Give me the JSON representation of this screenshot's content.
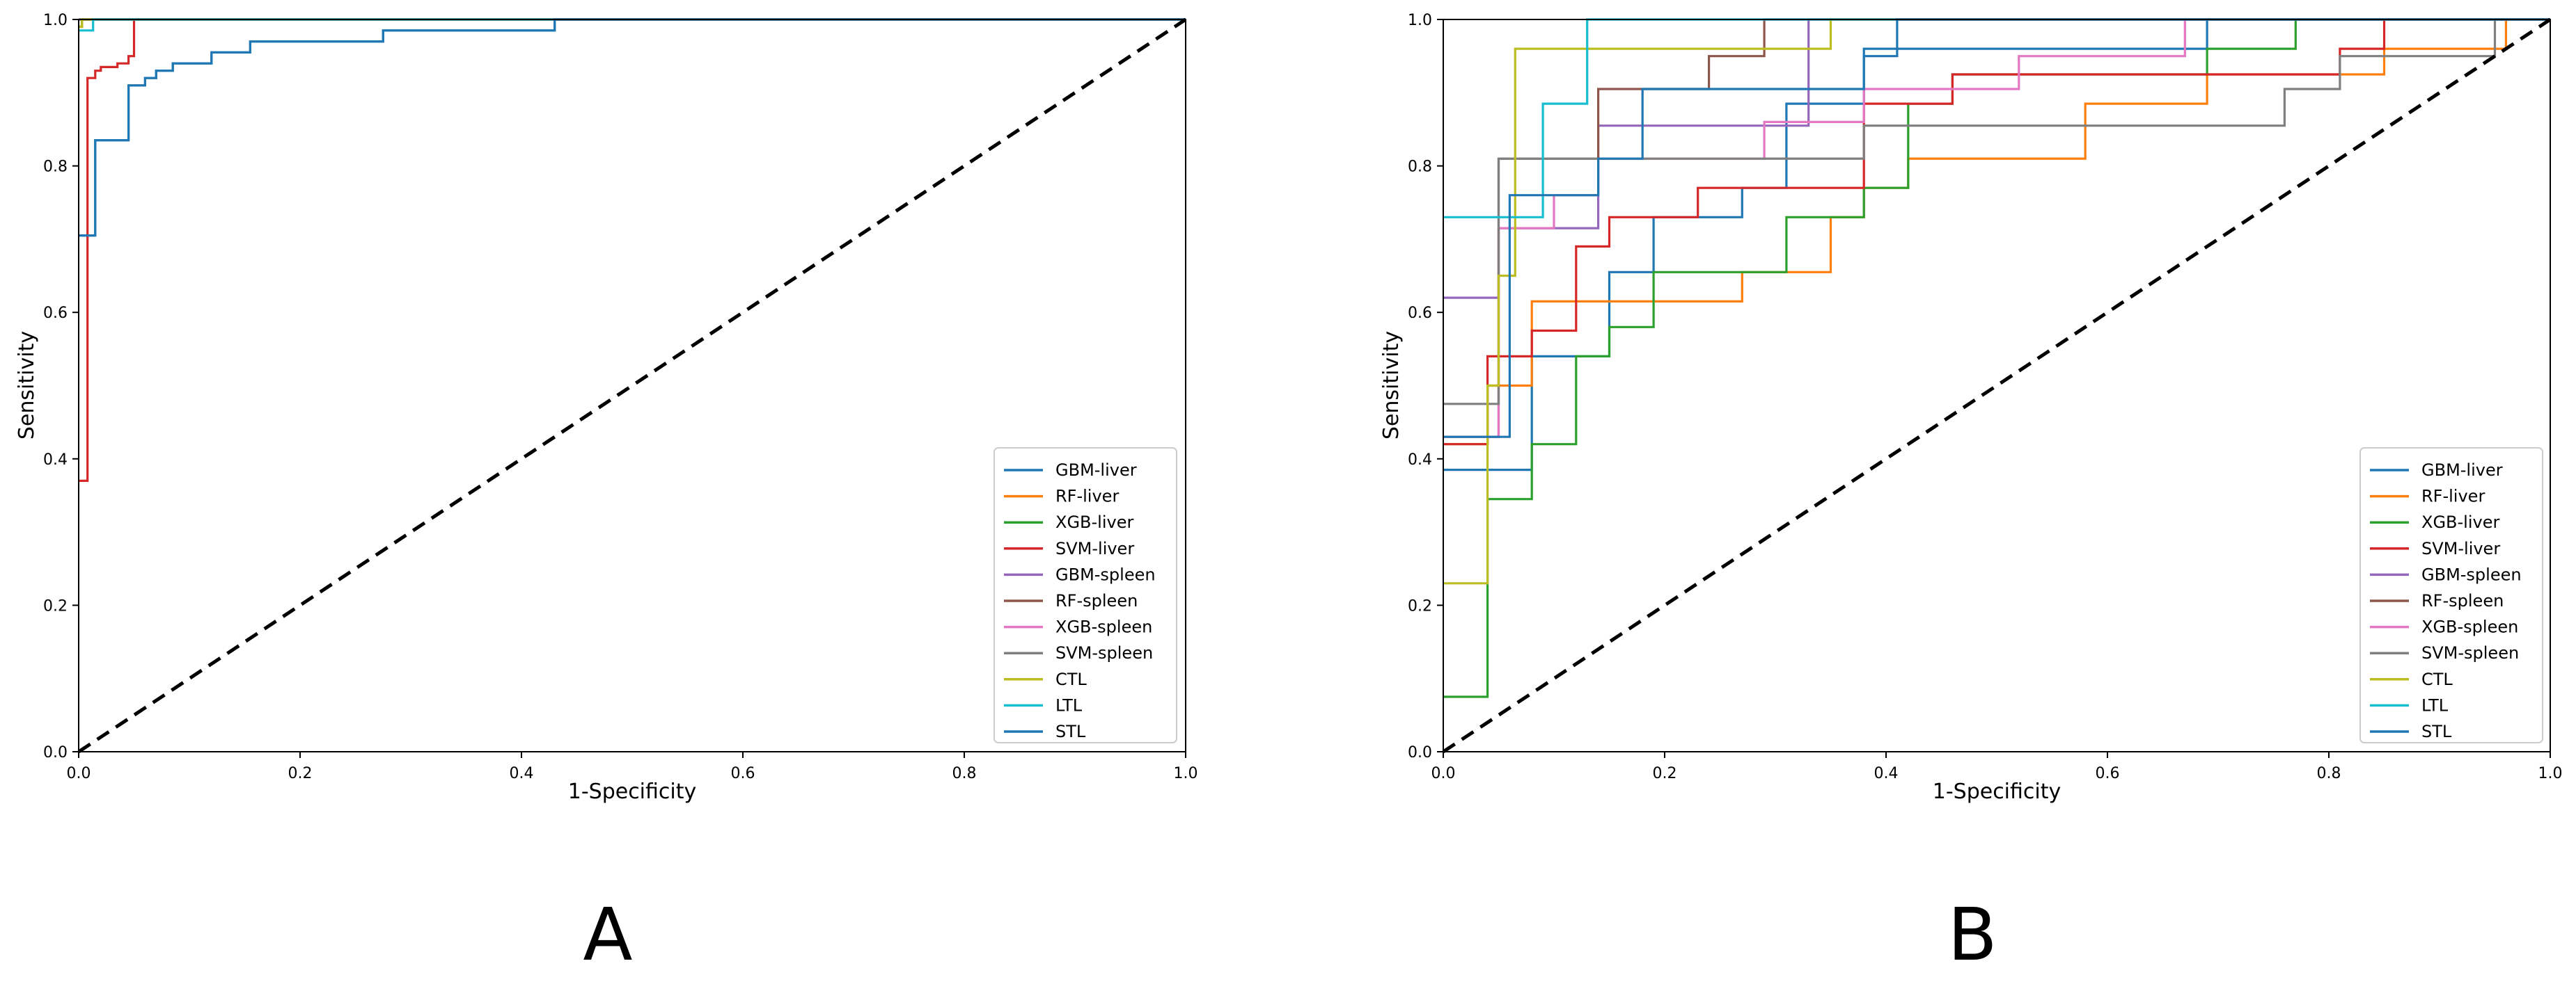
{
  "panels": [
    {
      "letter": "A",
      "xlabel": "1-Specificity",
      "ylabel": "Sensitivity",
      "xlim": [
        0,
        1
      ],
      "ylim": [
        0,
        1
      ],
      "xticks": [
        "0.0",
        "0.2",
        "0.4",
        "0.6",
        "0.8",
        "1.0"
      ],
      "yticks": [
        "0.0",
        "0.2",
        "0.4",
        "0.6",
        "0.8",
        "1.0"
      ],
      "legend_position": "lower-right"
    },
    {
      "letter": "B",
      "xlabel": "1-Specificity",
      "ylabel": "Sensitivity",
      "xlim": [
        0,
        1
      ],
      "ylim": [
        0,
        1
      ],
      "xticks": [
        "0.0",
        "0.2",
        "0.4",
        "0.6",
        "0.8",
        "1.0"
      ],
      "yticks": [
        "0.0",
        "0.2",
        "0.4",
        "0.6",
        "0.8",
        "1.0"
      ],
      "legend_position": "lower-right"
    }
  ],
  "chart_data": [
    {
      "type": "line",
      "panel": "A",
      "title": "",
      "xlabel": "1-Specificity",
      "ylabel": "Sensitivity",
      "xlim": [
        0,
        1
      ],
      "ylim": [
        0,
        1
      ],
      "grid": false,
      "legend": "lower-right",
      "diagonal": {
        "name": "chance",
        "color": "#000000",
        "style": "dashed",
        "x": [
          0,
          1
        ],
        "y": [
          0,
          1
        ]
      },
      "series": [
        {
          "name": "GBM-liver",
          "color": "#1f77b4",
          "x": [
            0,
            0.003,
            0.003,
            0.015,
            0.015,
            0.045,
            0.045,
            0.06,
            0.06,
            0.07,
            0.07,
            0.085,
            0.085,
            0.12,
            0.12,
            0.155,
            0.155,
            0.275,
            0.275,
            0.43,
            0.43,
            1
          ],
          "y": [
            0.705,
            0.705,
            0.705,
            0.705,
            0.835,
            0.835,
            0.91,
            0.91,
            0.92,
            0.92,
            0.93,
            0.93,
            0.94,
            0.94,
            0.955,
            0.955,
            0.97,
            0.97,
            0.985,
            0.985,
            1,
            1
          ]
        },
        {
          "name": "RF-liver",
          "color": "#ff7f0e",
          "x": [
            0,
            0.003,
            0.003,
            1
          ],
          "y": [
            0.99,
            0.99,
            1,
            1
          ]
        },
        {
          "name": "XGB-liver",
          "color": "#2ca02c",
          "x": [
            0,
            0.003,
            0.003,
            1
          ],
          "y": [
            0.99,
            0.99,
            1,
            1
          ]
        },
        {
          "name": "SVM-liver",
          "color": "#d62728",
          "x": [
            0,
            0.008,
            0.008,
            0.015,
            0.015,
            0.02,
            0.02,
            0.035,
            0.035,
            0.045,
            0.045,
            0.05,
            0.05,
            1
          ],
          "y": [
            0.37,
            0.37,
            0.92,
            0.92,
            0.93,
            0.93,
            0.935,
            0.935,
            0.94,
            0.94,
            0.95,
            0.95,
            1,
            1
          ]
        },
        {
          "name": "GBM-spleen",
          "color": "#9467bd",
          "x": [
            0,
            1
          ],
          "y": [
            1,
            1
          ]
        },
        {
          "name": "RF-spleen",
          "color": "#8c564b",
          "x": [
            0,
            1
          ],
          "y": [
            1,
            1
          ]
        },
        {
          "name": "XGB-spleen",
          "color": "#e377c2",
          "x": [
            0,
            1
          ],
          "y": [
            1,
            1
          ]
        },
        {
          "name": "SVM-spleen",
          "color": "#7f7f7f",
          "x": [
            0,
            1
          ],
          "y": [
            1,
            1
          ]
        },
        {
          "name": "CTL",
          "color": "#bcbd22",
          "x": [
            0,
            0.003,
            0.003,
            1
          ],
          "y": [
            0.99,
            0.99,
            1,
            1
          ]
        },
        {
          "name": "LTL",
          "color": "#17becf",
          "x": [
            0,
            0.013,
            0.013,
            1
          ],
          "y": [
            0.985,
            0.985,
            1,
            1
          ]
        },
        {
          "name": "STL",
          "color": "#1f77b4",
          "x": [
            0,
            0.003,
            0.003,
            0.015,
            0.015,
            0.045,
            0.045,
            0.06,
            0.06,
            0.07,
            0.07,
            0.085,
            0.085,
            0.12,
            0.12,
            0.155,
            0.155,
            0.275,
            0.275,
            0.43,
            0.43,
            1
          ],
          "y": [
            0.705,
            0.705,
            0.705,
            0.705,
            0.835,
            0.835,
            0.91,
            0.91,
            0.92,
            0.92,
            0.93,
            0.93,
            0.94,
            0.94,
            0.955,
            0.955,
            0.97,
            0.97,
            0.985,
            0.985,
            1,
            1
          ]
        }
      ]
    },
    {
      "type": "line",
      "panel": "B",
      "title": "",
      "xlabel": "1-Specificity",
      "ylabel": "Sensitivity",
      "xlim": [
        0,
        1
      ],
      "ylim": [
        0,
        1
      ],
      "grid": false,
      "legend": "lower-right",
      "diagonal": {
        "name": "chance",
        "color": "#000000",
        "style": "dashed",
        "x": [
          0,
          1
        ],
        "y": [
          0,
          1
        ]
      },
      "series": [
        {
          "name": "GBM-liver",
          "color": "#1f77b4",
          "x": [
            0,
            0.08,
            0.08,
            0.15,
            0.15,
            0.19,
            0.19,
            0.27,
            0.27,
            0.31,
            0.31,
            0.38,
            0.38,
            0.69,
            0.69,
            0.81,
            0.81,
            1
          ],
          "y": [
            0.385,
            0.385,
            0.54,
            0.54,
            0.655,
            0.655,
            0.73,
            0.73,
            0.77,
            0.77,
            0.885,
            0.885,
            0.96,
            0.96,
            1,
            1,
            1,
            1
          ]
        },
        {
          "name": "RF-liver",
          "color": "#ff7f0e",
          "x": [
            0,
            0.04,
            0.04,
            0.08,
            0.08,
            0.27,
            0.27,
            0.35,
            0.35,
            0.38,
            0.38,
            0.42,
            0.42,
            0.58,
            0.58,
            0.69,
            0.69,
            0.73,
            0.73,
            0.85,
            0.85,
            0.92,
            0.92,
            0.96,
            0.96,
            1
          ],
          "y": [
            0.42,
            0.42,
            0.5,
            0.5,
            0.615,
            0.615,
            0.655,
            0.655,
            0.73,
            0.73,
            0.77,
            0.77,
            0.81,
            0.81,
            0.885,
            0.885,
            0.925,
            0.925,
            0.925,
            0.925,
            0.96,
            0.96,
            0.96,
            0.96,
            1,
            1
          ]
        },
        {
          "name": "XGB-liver",
          "color": "#2ca02c",
          "x": [
            0,
            0.04,
            0.04,
            0.08,
            0.08,
            0.12,
            0.12,
            0.15,
            0.15,
            0.19,
            0.19,
            0.31,
            0.31,
            0.38,
            0.38,
            0.42,
            0.42,
            0.46,
            0.46,
            0.69,
            0.69,
            0.77,
            0.77,
            1
          ],
          "y": [
            0.075,
            0.075,
            0.345,
            0.345,
            0.42,
            0.42,
            0.54,
            0.54,
            0.58,
            0.58,
            0.655,
            0.655,
            0.73,
            0.73,
            0.77,
            0.77,
            0.885,
            0.885,
            0.925,
            0.925,
            0.96,
            0.96,
            1,
            1
          ]
        },
        {
          "name": "SVM-liver",
          "color": "#d62728",
          "x": [
            0,
            0.04,
            0.04,
            0.08,
            0.08,
            0.12,
            0.12,
            0.15,
            0.15,
            0.19,
            0.19,
            0.23,
            0.23,
            0.38,
            0.38,
            0.46,
            0.46,
            0.81,
            0.81,
            0.85,
            0.85,
            1
          ],
          "y": [
            0.42,
            0.42,
            0.54,
            0.54,
            0.575,
            0.575,
            0.69,
            0.69,
            0.73,
            0.73,
            0.73,
            0.73,
            0.77,
            0.77,
            0.885,
            0.885,
            0.925,
            0.925,
            0.96,
            0.96,
            1,
            1
          ]
        },
        {
          "name": "GBM-spleen",
          "color": "#9467bd",
          "x": [
            0,
            0.05,
            0.05,
            0.14,
            0.14,
            0.33,
            0.33,
            1
          ],
          "y": [
            0.62,
            0.62,
            0.715,
            0.715,
            0.855,
            0.855,
            1,
            1
          ]
        },
        {
          "name": "RF-spleen",
          "color": "#8c564b",
          "x": [
            0,
            0.05,
            0.05,
            0.14,
            0.14,
            0.24,
            0.24,
            0.29,
            0.29,
            1
          ],
          "y": [
            0.43,
            0.43,
            0.81,
            0.81,
            0.905,
            0.905,
            0.95,
            0.95,
            1,
            1
          ]
        },
        {
          "name": "XGB-spleen",
          "color": "#e377c2",
          "x": [
            0,
            0.05,
            0.05,
            0.1,
            0.1,
            0.14,
            0.14,
            0.29,
            0.29,
            0.38,
            0.38,
            0.52,
            0.52,
            0.67,
            0.67,
            1
          ],
          "y": [
            0.43,
            0.43,
            0.715,
            0.715,
            0.76,
            0.76,
            0.81,
            0.81,
            0.86,
            0.86,
            0.905,
            0.905,
            0.95,
            0.95,
            1,
            1
          ]
        },
        {
          "name": "SVM-spleen",
          "color": "#7f7f7f",
          "x": [
            0,
            0.05,
            0.05,
            0.1,
            0.1,
            0.38,
            0.38,
            0.76,
            0.76,
            0.81,
            0.81,
            0.95,
            0.95,
            1
          ],
          "y": [
            0.475,
            0.475,
            0.81,
            0.81,
            0.81,
            0.81,
            0.855,
            0.855,
            0.905,
            0.905,
            0.95,
            0.95,
            1,
            1
          ]
        },
        {
          "name": "CTL",
          "color": "#bcbd22",
          "x": [
            0,
            0.04,
            0.04,
            0.05,
            0.05,
            0.065,
            0.065,
            0.09,
            0.09,
            0.35,
            0.35,
            1
          ],
          "y": [
            0.23,
            0.23,
            0.5,
            0.5,
            0.65,
            0.65,
            0.96,
            0.96,
            0.96,
            0.96,
            1,
            1
          ]
        },
        {
          "name": "LTL",
          "color": "#17becf",
          "x": [
            0,
            0.09,
            0.09,
            0.13,
            0.13,
            1
          ],
          "y": [
            0.73,
            0.73,
            0.885,
            0.885,
            1,
            1
          ]
        },
        {
          "name": "STL",
          "color": "#1f77b4",
          "x": [
            0,
            0.06,
            0.06,
            0.14,
            0.14,
            0.18,
            0.18,
            0.38,
            0.38,
            0.41,
            0.41,
            1
          ],
          "y": [
            0.43,
            0.43,
            0.76,
            0.76,
            0.81,
            0.81,
            0.905,
            0.905,
            0.95,
            0.95,
            1,
            1
          ]
        }
      ]
    }
  ]
}
